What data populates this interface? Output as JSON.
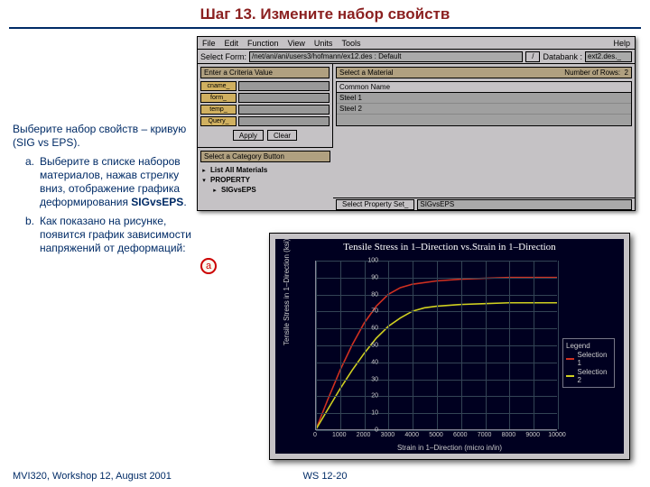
{
  "title": "Шаг 13.  Измените набор свойств",
  "left": {
    "intro": "Выберите набор свойств – кривую (SIG vs EPS).",
    "a_marker": "a.",
    "a": "Выберите в списке наборов материалов, нажав стрелку вниз, отображение графика деформирования ",
    "a_bold": "SIGvsEPS",
    "a_tail": ".",
    "b_marker": "b.",
    "b": "Как показано на рисунке, появится график зависимости напряжений от деформаций:"
  },
  "app": {
    "menu": {
      "file": "File",
      "edit": "Edit",
      "function": "Function",
      "view": "View",
      "units": "Units",
      "tools": "Tools",
      "help": "Help"
    },
    "bar2": {
      "form_lbl": "Select Form:",
      "form_val": "/net/ani/ani/users3/hofmann/ex12.des : Default",
      "db_lbl": "Databank :",
      "db_val": "ext2.des._"
    },
    "criteria": {
      "title": "Enter a Criteria Value",
      "rows": [
        "cname_",
        "form_",
        "temp_",
        "Query_"
      ],
      "apply": "Apply",
      "clear": "Clear"
    },
    "material": {
      "title": "Select a Material",
      "rows_lbl": "Number of Rows:",
      "rows_n": "2",
      "col": "Common Name",
      "r1": "Steel 1",
      "r2": "Steel 2"
    },
    "category": {
      "title": "Select a Category Button",
      "c1": "List All Materials",
      "c2": "PROPERTY",
      "c3": "SIGvsEPS"
    },
    "propbar": {
      "btn": "Select Property Set_",
      "val": "SIGvsEPS"
    },
    "callout_a": "a"
  },
  "chart": {
    "title": "Tensile Stress in 1–Direction vs.Strain in 1–Direction",
    "xlabel": "Strain in 1–Direction (micro in/in)",
    "ylabel": "Tensile Stress in 1–Direction (ksi)",
    "ylim": [
      0,
      100
    ],
    "ytick_step": 10,
    "xlim": [
      0,
      10000
    ],
    "xtick_step": 1000,
    "grid_color": "#334455",
    "bg": "#000020",
    "series": [
      {
        "name": "Selection 1",
        "color": "#d03020",
        "pts": [
          [
            0,
            0
          ],
          [
            500,
            18
          ],
          [
            1000,
            35
          ],
          [
            1500,
            50
          ],
          [
            2000,
            63
          ],
          [
            2500,
            73
          ],
          [
            3000,
            80
          ],
          [
            3500,
            84
          ],
          [
            4000,
            86
          ],
          [
            5000,
            88
          ],
          [
            6000,
            89
          ],
          [
            7000,
            89.5
          ],
          [
            8000,
            90
          ],
          [
            9000,
            90
          ],
          [
            10000,
            90
          ]
        ]
      },
      {
        "name": "Selection 2",
        "color": "#d0d020",
        "pts": [
          [
            0,
            0
          ],
          [
            500,
            12
          ],
          [
            1000,
            24
          ],
          [
            1500,
            35
          ],
          [
            2000,
            45
          ],
          [
            2500,
            54
          ],
          [
            3000,
            61
          ],
          [
            3500,
            66
          ],
          [
            4000,
            70
          ],
          [
            4500,
            72
          ],
          [
            5000,
            73
          ],
          [
            6000,
            74
          ],
          [
            7000,
            74.5
          ],
          [
            8000,
            75
          ],
          [
            9000,
            75
          ],
          [
            10000,
            75
          ]
        ]
      }
    ],
    "legend_title": "Legend"
  },
  "footer": {
    "left": "MVI320, Workshop 12, August 2001",
    "center": "WS 12-20"
  }
}
